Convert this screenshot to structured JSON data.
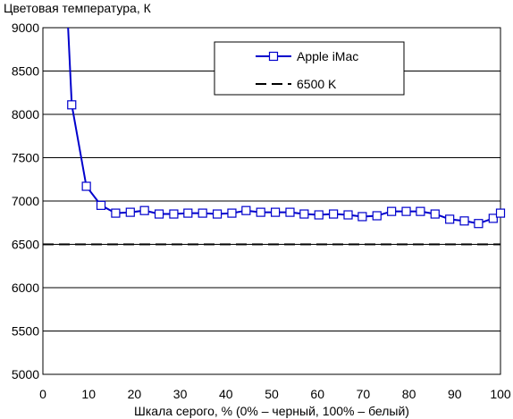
{
  "chart_data": {
    "type": "line",
    "title": "Цветовая температура, К",
    "xlabel": "Шкала серого, % (0% – черный, 100% – белый)",
    "ylabel": "",
    "xlim": [
      0,
      100
    ],
    "ylim": [
      5000,
      9000
    ],
    "x_ticks": [
      0,
      10,
      20,
      30,
      40,
      50,
      60,
      70,
      80,
      90,
      100
    ],
    "y_ticks": [
      5000,
      5500,
      6000,
      6500,
      7000,
      7500,
      8000,
      8500,
      9000
    ],
    "grid": "horizontal",
    "legend_position": "top-right",
    "series": [
      {
        "name": "Apple iMac",
        "color": "#0000cc",
        "marker": "square-open",
        "lead_in": [
          {
            "x": 5.5,
            "y": 9000
          }
        ],
        "x": [
          6.3,
          9.5,
          12.7,
          15.9,
          19.1,
          22.2,
          25.4,
          28.6,
          31.7,
          34.9,
          38.1,
          41.3,
          44.4,
          47.6,
          50.8,
          54.0,
          57.1,
          60.3,
          63.5,
          66.7,
          69.8,
          73.0,
          76.2,
          79.4,
          82.5,
          85.7,
          88.9,
          92.1,
          95.2,
          98.4,
          100
        ],
        "y": [
          8110,
          7170,
          6950,
          6860,
          6870,
          6890,
          6850,
          6850,
          6860,
          6860,
          6850,
          6860,
          6890,
          6870,
          6870,
          6870,
          6850,
          6840,
          6850,
          6840,
          6820,
          6830,
          6880,
          6880,
          6880,
          6850,
          6790,
          6770,
          6740,
          6800,
          6860
        ]
      },
      {
        "name": "6500 K",
        "color": "#000000",
        "style": "dashed",
        "constant": 6500
      }
    ]
  }
}
